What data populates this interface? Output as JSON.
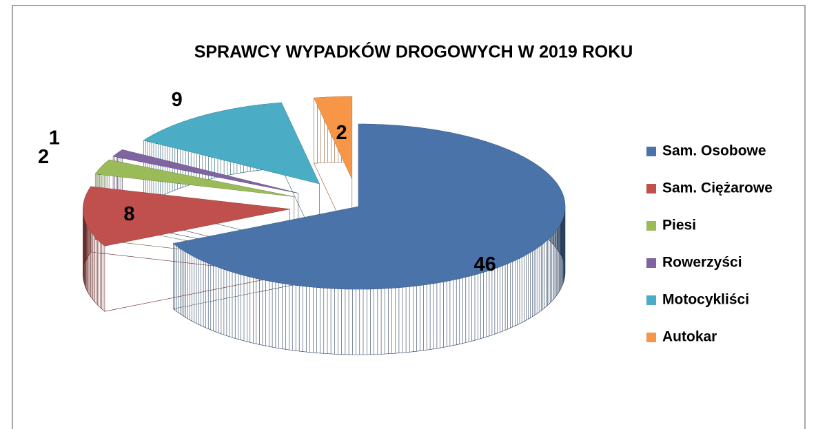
{
  "chart_data": {
    "type": "pie",
    "title": "SPRAWCY WYPADKÓW DROGOWYCH W 2019 ROKU",
    "categories": [
      "Sam. Osobowe",
      "Sam. Ciężarowe",
      "Piesi",
      "Rowerzyści",
      "Motocykliści",
      "Autokar"
    ],
    "values": [
      46,
      8,
      2,
      1,
      9,
      2
    ],
    "colors": [
      "#4a73aa",
      "#c0504d",
      "#9bbb59",
      "#8064a2",
      "#4bacc6",
      "#f79646"
    ],
    "legend": "right"
  }
}
